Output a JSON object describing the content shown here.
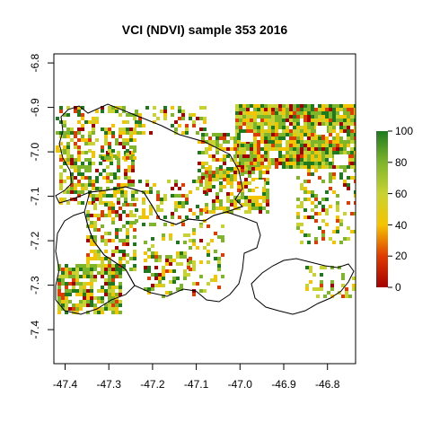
{
  "title": "VCI (NDVI) sample 353 2016",
  "axes": {
    "x_ticks": [
      "-47.4",
      "-47.3",
      "-47.2",
      "-47.1",
      "-47.0",
      "-46.9",
      "-46.8"
    ],
    "y_ticks": [
      "-6.8",
      "-6.9",
      "-7.0",
      "-7.1",
      "-7.2",
      "-7.3",
      "-7.4"
    ]
  },
  "legend": {
    "ticks": [
      "100",
      "80",
      "60",
      "40",
      "20",
      "0"
    ],
    "colors": [
      "#a50000",
      "#e03b00",
      "#f5c400",
      "#c8d230",
      "#7fb52a",
      "#1f7a1f"
    ]
  },
  "chart_data": {
    "type": "heatmap",
    "title": "VCI (NDVI) sample 353 2016",
    "xlabel": "",
    "ylabel": "",
    "xlim": [
      -47.43,
      -46.74
    ],
    "ylim": [
      -7.49,
      -6.78
    ],
    "x_ticks": [
      -47.4,
      -47.3,
      -47.2,
      -47.1,
      -47.0,
      -46.9,
      -46.8
    ],
    "y_ticks": [
      -6.8,
      -6.9,
      -7.0,
      -7.1,
      -7.2,
      -7.3,
      -7.4
    ],
    "colorbar": {
      "min": 0,
      "max": 100,
      "ticks": [
        0,
        20,
        40,
        60,
        80,
        100
      ]
    },
    "colormap": [
      "#a50000",
      "#e03b00",
      "#f5c400",
      "#c8d230",
      "#7fb52a",
      "#1f7a1f"
    ],
    "grid": false,
    "legend_position": "right"
  }
}
